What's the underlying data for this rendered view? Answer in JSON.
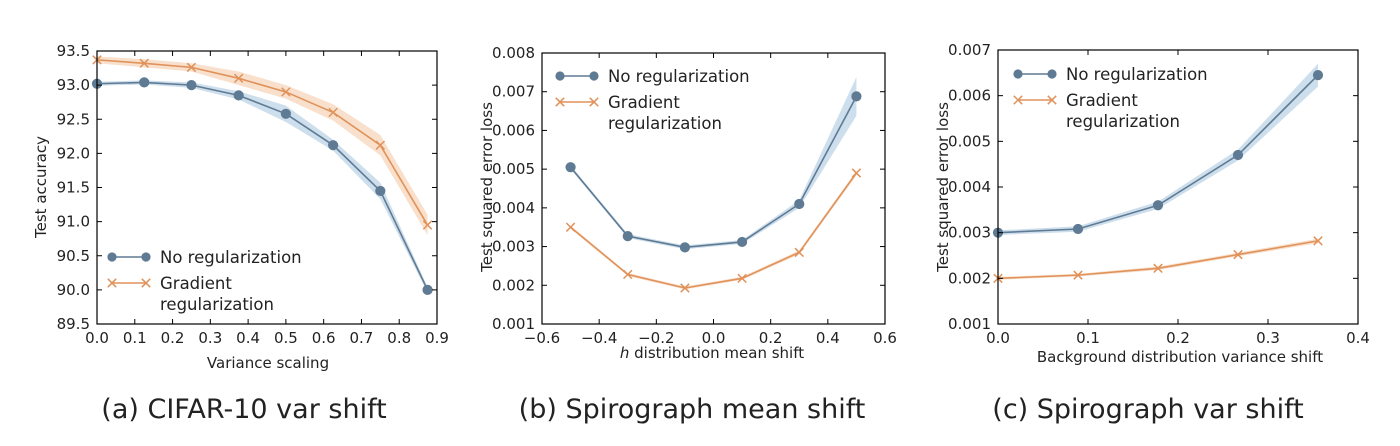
{
  "chart_data": [
    {
      "type": "line",
      "caption": "(a) CIFAR-10 var shift",
      "xlabel": "Variance scaling",
      "ylabel": "Test accuracy",
      "xlim": [
        0.0,
        0.9
      ],
      "ylim": [
        89.5,
        93.5
      ],
      "xticks": [
        "0.0",
        "0.1",
        "0.2",
        "0.3",
        "0.4",
        "0.5",
        "0.6",
        "0.7",
        "0.8",
        "0.9"
      ],
      "yticks": [
        "89.5",
        "90.0",
        "90.5",
        "91.0",
        "91.5",
        "92.0",
        "92.5",
        "93.0",
        "93.5"
      ],
      "legend_position": "lower-left",
      "grid": false,
      "x": [
        0.0,
        0.125,
        0.25,
        0.375,
        0.5,
        0.625,
        0.75,
        0.875
      ],
      "series": [
        {
          "name": "No regularization",
          "marker": "o",
          "color": "#5f7b94",
          "band_color": "#bcd3e6",
          "values": [
            93.02,
            93.04,
            93.0,
            92.85,
            92.58,
            92.12,
            91.45,
            90.0
          ],
          "band": [
            0.03,
            0.03,
            0.04,
            0.06,
            0.12,
            0.08,
            0.12,
            0.04
          ]
        },
        {
          "name": "Gradient\nregularization",
          "marker": "x",
          "color": "#e0925a",
          "band_color": "#f6d5bb",
          "values": [
            93.37,
            93.32,
            93.26,
            93.1,
            92.9,
            92.6,
            92.12,
            90.95
          ],
          "band": [
            0.05,
            0.06,
            0.06,
            0.1,
            0.1,
            0.12,
            0.15,
            0.15
          ]
        }
      ]
    },
    {
      "type": "line",
      "caption": "(b) Spirograph mean shift",
      "xlabel_symbol": "h",
      "xlabel": " distribution mean shift",
      "ylabel": "Test squared error loss",
      "xlim": [
        -0.6,
        0.6
      ],
      "ylim": [
        0.001,
        0.008
      ],
      "xticks": [
        "−0.6",
        "−0.4",
        "−0.2",
        "0.0",
        "0.2",
        "0.4",
        "0.6"
      ],
      "yticks": [
        "0.001",
        "0.002",
        "0.003",
        "0.004",
        "0.005",
        "0.006",
        "0.007",
        "0.008"
      ],
      "legend_position": "upper-left",
      "grid": false,
      "x": [
        -0.5,
        -0.3,
        -0.1,
        0.1,
        0.3,
        0.5
      ],
      "series": [
        {
          "name": "No regularization",
          "marker": "o",
          "color": "#5f7b94",
          "band_color": "#bcd3e6",
          "values": [
            0.00505,
            0.00327,
            0.00298,
            0.00312,
            0.0041,
            0.00688
          ],
          "band": [
            5e-05,
            5e-05,
            5e-05,
            5e-05,
            0.0001,
            0.0005
          ]
        },
        {
          "name": "Gradient\nregularization",
          "marker": "x",
          "color": "#e0925a",
          "band_color": "#f6d5bb",
          "values": [
            0.0035,
            0.00228,
            0.00193,
            0.00218,
            0.00285,
            0.0049
          ],
          "band": [
            4e-05,
            4e-05,
            4e-05,
            4e-05,
            5e-05,
            6e-05
          ]
        }
      ]
    },
    {
      "type": "line",
      "caption": "(c) Spirograph var shift",
      "xlabel": "Background distribution variance shift",
      "ylabel": "Test squared error loss",
      "xlim": [
        0.0,
        0.45
      ],
      "ylim": [
        0.001,
        0.007
      ],
      "xticks": [
        "0.0",
        "0.1",
        "0.2",
        "0.3",
        "0.4"
      ],
      "yticks": [
        "0.001",
        "0.002",
        "0.003",
        "0.004",
        "0.005",
        "0.006",
        "0.007"
      ],
      "legend_position": "upper-left",
      "grid": false,
      "x": [
        0.0,
        0.1,
        0.2,
        0.3,
        0.4
      ],
      "series": [
        {
          "name": "No regularization",
          "marker": "o",
          "color": "#5f7b94",
          "band_color": "#bcd3e6",
          "values": [
            0.003,
            0.00308,
            0.0036,
            0.0047,
            0.00645
          ],
          "band": [
            5e-05,
            6e-05,
            8e-05,
            0.00012,
            0.00025
          ]
        },
        {
          "name": "Gradient\nregularization",
          "marker": "x",
          "color": "#e0925a",
          "band_color": "#f6d5bb",
          "values": [
            0.002,
            0.00207,
            0.00222,
            0.00252,
            0.00282
          ],
          "band": [
            3e-05,
            3e-05,
            4e-05,
            4e-05,
            5e-05
          ]
        }
      ]
    }
  ]
}
